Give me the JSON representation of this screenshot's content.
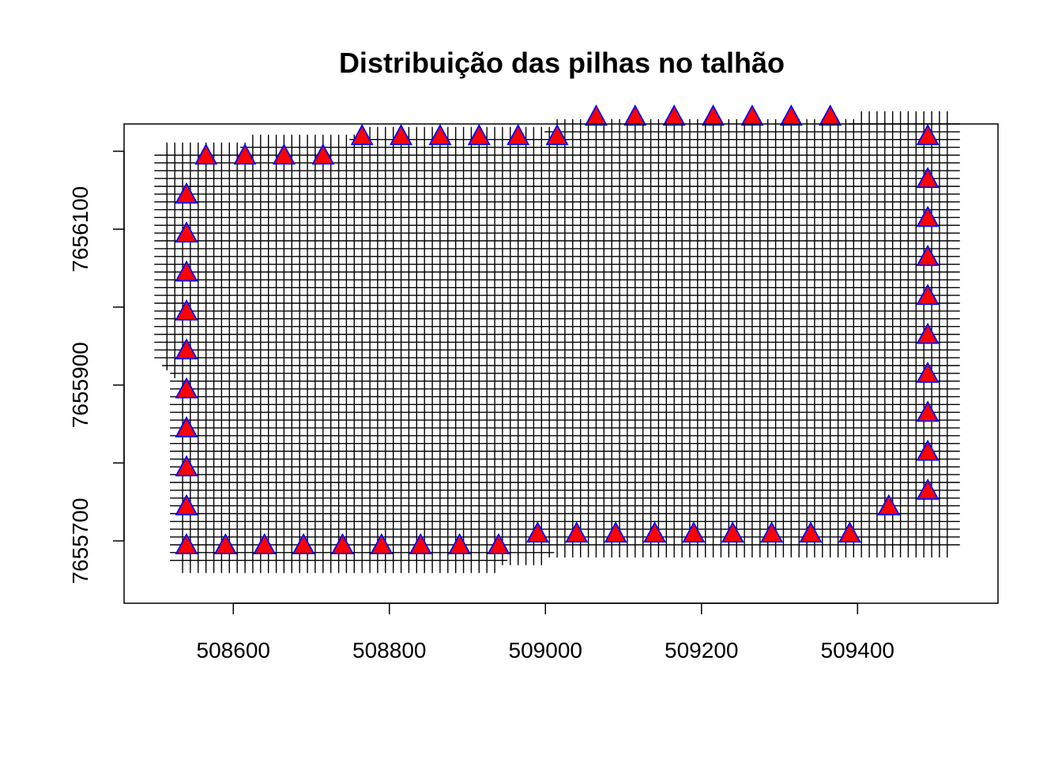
{
  "chart_data": {
    "type": "scatter",
    "title": "Distribuição das pilhas no talhão",
    "xlabel": "",
    "ylabel": "",
    "xlim": [
      508460,
      509580
    ],
    "ylim": [
      7655620,
      7656235
    ],
    "x_ticks": [
      508600,
      508800,
      509000,
      509200,
      509400
    ],
    "x_tick_labels": [
      "508600",
      "508800",
      "509000",
      "509200",
      "509400"
    ],
    "y_ticks": [
      7655700,
      7655800,
      7655900,
      7656000,
      7656100,
      7656200
    ],
    "y_tick_labels": [
      "7655700",
      "",
      "7655900",
      "",
      "7656100",
      ""
    ],
    "grid": false,
    "legend": "none",
    "colors": {
      "marker_fill": "#ff0000",
      "marker_edge": "#0000ff",
      "field_points": "#000000"
    },
    "field_points": {
      "marker": "plus",
      "spacing_x": 10,
      "spacing_y": 10,
      "x_range": [
        508515,
        509515
      ],
      "y_range": [
        7655675,
        7656230
      ],
      "boundary": {
        "left_x_by_y": [
          [
            7655675,
            508535
          ],
          [
            7655925,
            508525
          ],
          [
            7655926,
            508515
          ],
          [
            7656195,
            508515
          ]
        ],
        "right_x": 509515,
        "top_y_by_x": [
          [
            508515,
            7656195
          ],
          [
            508620,
            7656205
          ],
          [
            508765,
            7656215
          ],
          [
            509015,
            7656225
          ],
          [
            509190,
            7656225
          ],
          [
            509400,
            7656235
          ],
          [
            509515,
            7656235
          ]
        ],
        "bottom_y_by_x": [
          [
            508515,
            7655675
          ],
          [
            508940,
            7655675
          ],
          [
            509000,
            7655685
          ],
          [
            509300,
            7655690
          ],
          [
            509515,
            7655695
          ]
        ]
      }
    },
    "pilhas": {
      "marker": "triangle",
      "points": [
        [
          508565,
          7656195
        ],
        [
          508615,
          7656195
        ],
        [
          508665,
          7656195
        ],
        [
          508715,
          7656195
        ],
        [
          508765,
          7656220
        ],
        [
          508815,
          7656220
        ],
        [
          508865,
          7656220
        ],
        [
          508915,
          7656220
        ],
        [
          508965,
          7656220
        ],
        [
          509015,
          7656220
        ],
        [
          509065,
          7656245
        ],
        [
          509115,
          7656245
        ],
        [
          509165,
          7656245
        ],
        [
          509215,
          7656245
        ],
        [
          509265,
          7656245
        ],
        [
          509315,
          7656245
        ],
        [
          509365,
          7656245
        ],
        [
          508540,
          7656145
        ],
        [
          508540,
          7656095
        ],
        [
          508540,
          7656045
        ],
        [
          508540,
          7655995
        ],
        [
          508540,
          7655945
        ],
        [
          508540,
          7655895
        ],
        [
          508540,
          7655845
        ],
        [
          508540,
          7655795
        ],
        [
          508540,
          7655745
        ],
        [
          508540,
          7655695
        ],
        [
          508590,
          7655695
        ],
        [
          508640,
          7655695
        ],
        [
          508690,
          7655695
        ],
        [
          508740,
          7655695
        ],
        [
          508790,
          7655695
        ],
        [
          508840,
          7655695
        ],
        [
          508890,
          7655695
        ],
        [
          508940,
          7655695
        ],
        [
          508990,
          7655710
        ],
        [
          509040,
          7655710
        ],
        [
          509090,
          7655710
        ],
        [
          509140,
          7655710
        ],
        [
          509190,
          7655710
        ],
        [
          509240,
          7655710
        ],
        [
          509290,
          7655710
        ],
        [
          509340,
          7655710
        ],
        [
          509390,
          7655710
        ],
        [
          509440,
          7655745
        ],
        [
          509490,
          7655765
        ],
        [
          509490,
          7655815
        ],
        [
          509490,
          7655865
        ],
        [
          509490,
          7655915
        ],
        [
          509490,
          7655965
        ],
        [
          509490,
          7656015
        ],
        [
          509490,
          7656065
        ],
        [
          509490,
          7656115
        ],
        [
          509490,
          7656165
        ],
        [
          509490,
          7656220
        ]
      ]
    }
  }
}
